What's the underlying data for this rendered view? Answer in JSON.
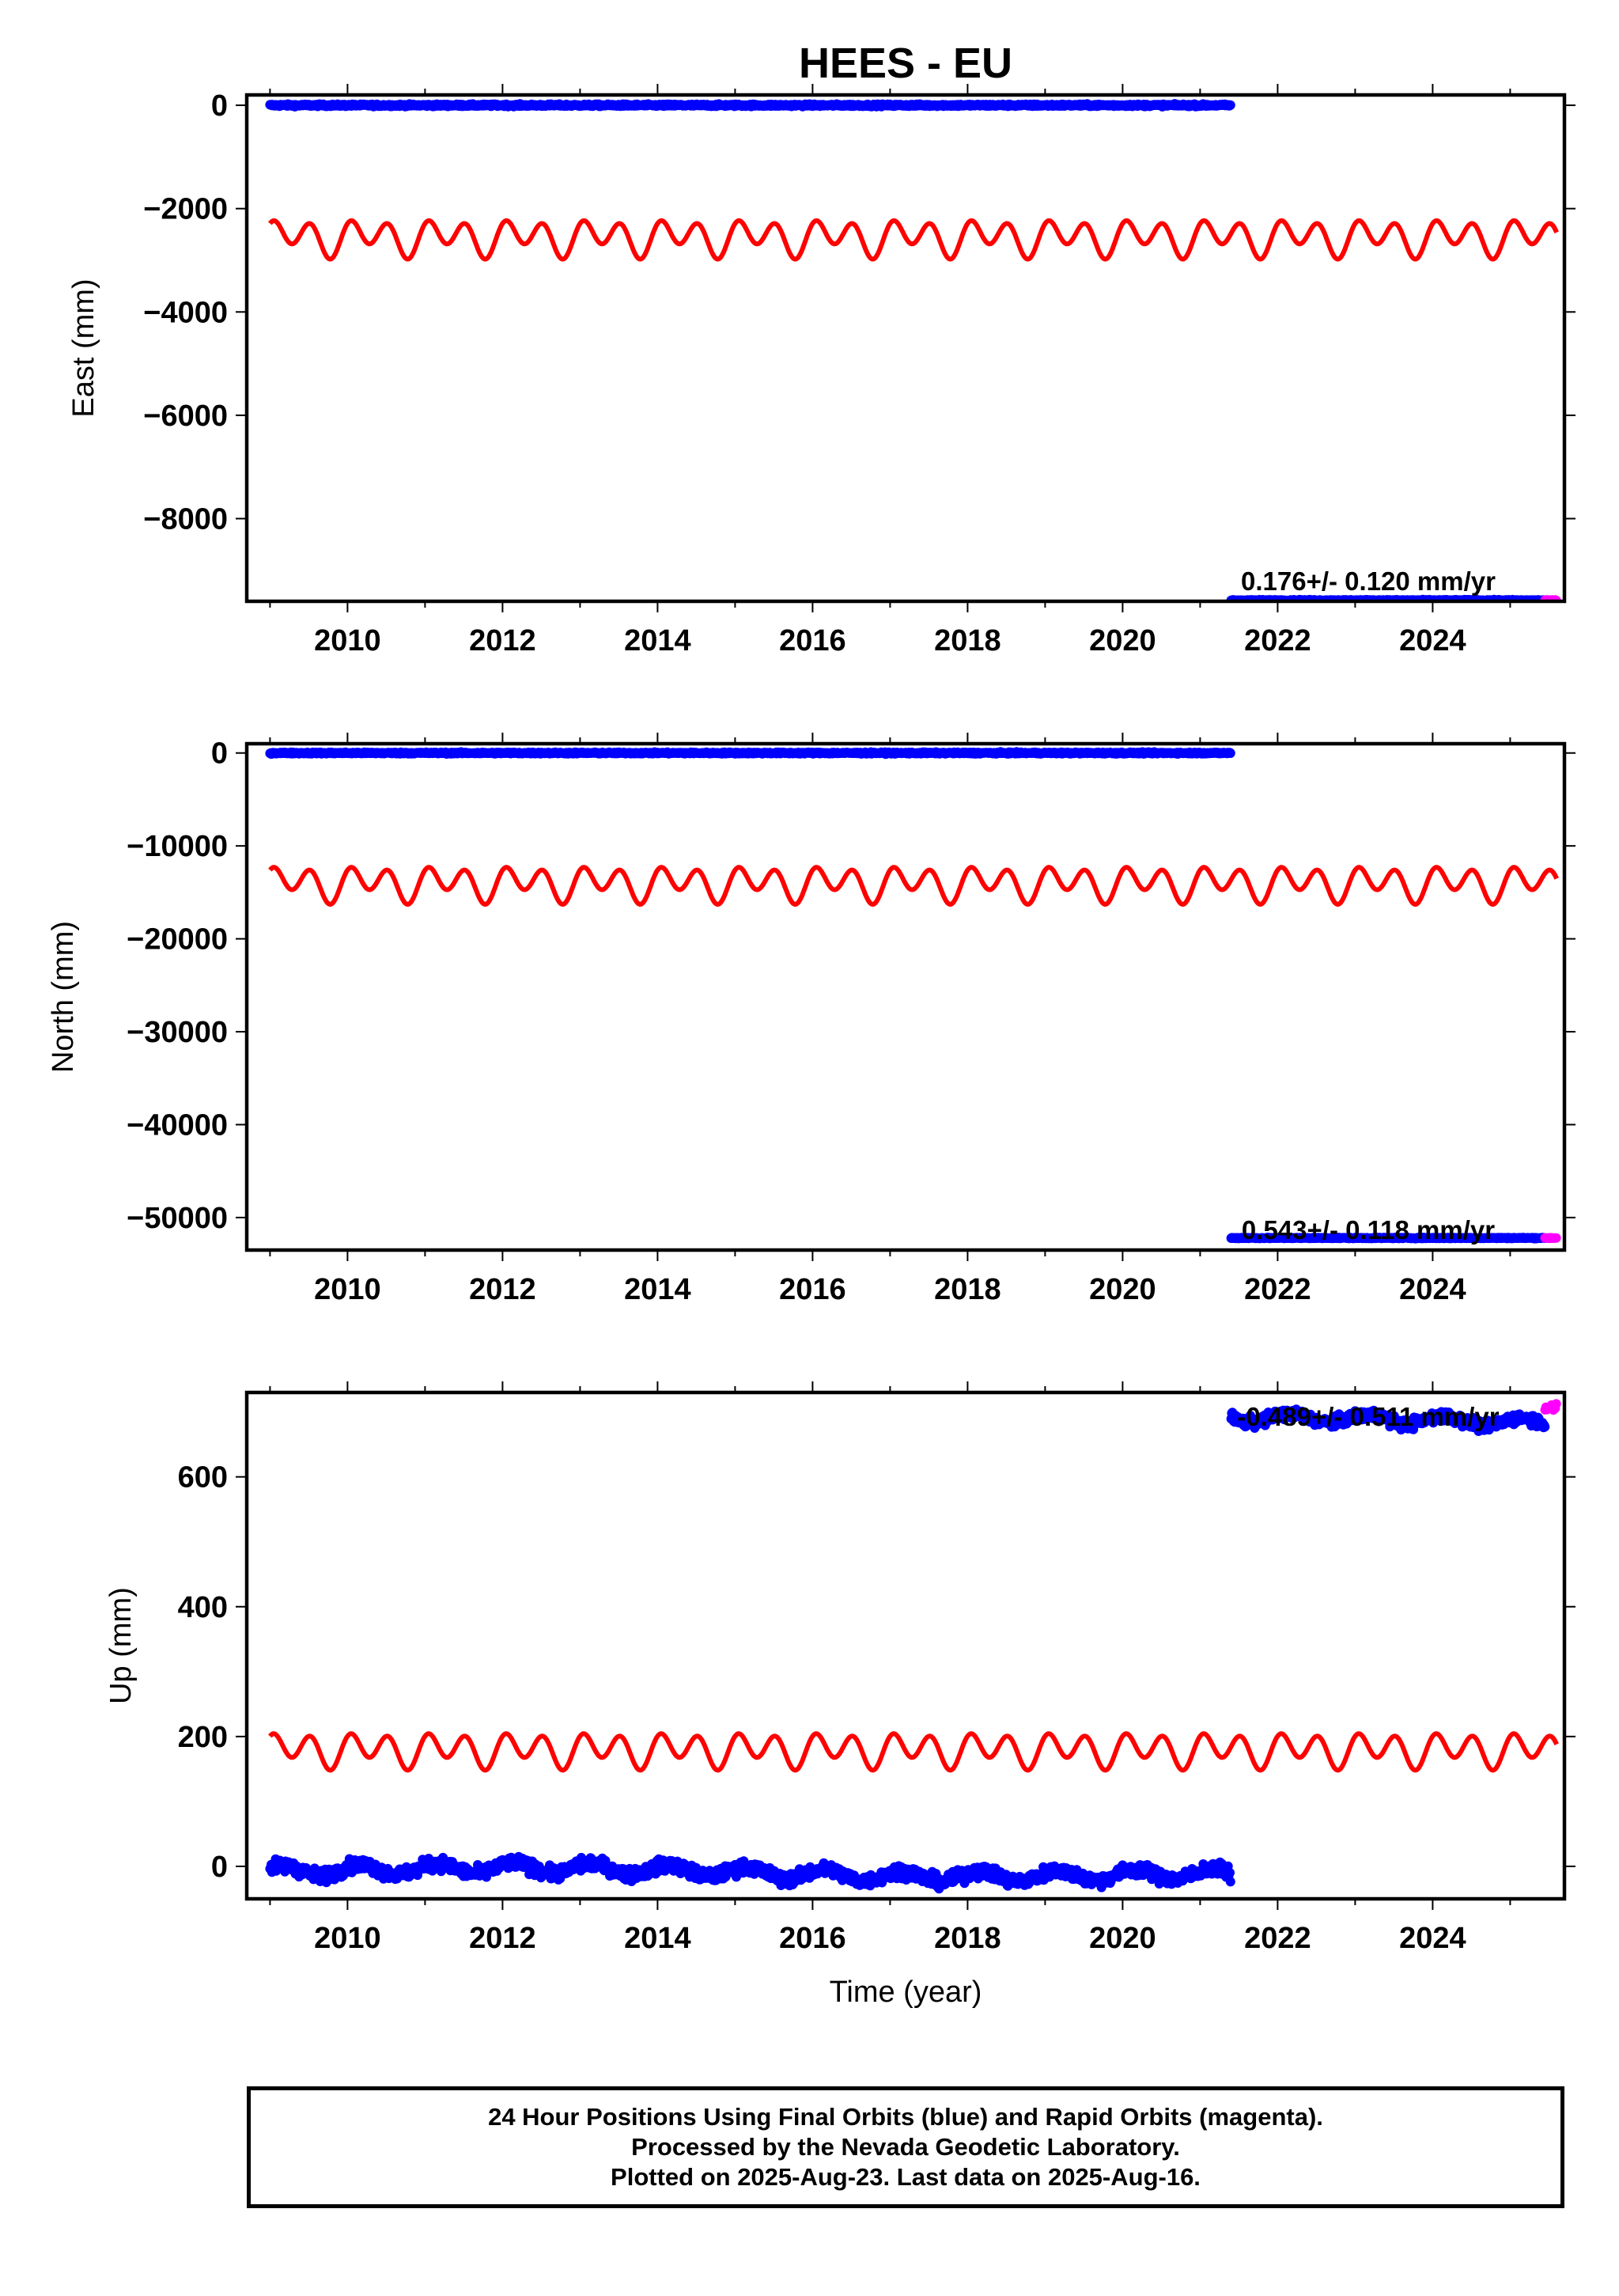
{
  "title": "HEES - EU",
  "x_axis_label": "Time (year)",
  "footer": [
    "24 Hour Positions Using Final Orbits (blue) and Rapid Orbits (magenta).",
    "Processed by the Nevada Geodetic Laboratory.",
    "Plotted on 2025-Aug-23. Last data on 2025-Aug-16."
  ],
  "colors": {
    "final": "#0000ff",
    "rapid": "#ff00ff",
    "model": "#ff0000",
    "frame": "#000000"
  },
  "chart_data": [
    {
      "type": "scatter",
      "ylabel": "East (mm)",
      "xlim": [
        2008.7,
        2025.7
      ],
      "ylim": [
        -9600,
        200
      ],
      "yticks": [
        0,
        -2000,
        -4000,
        -6000,
        -8000
      ],
      "ytick_labels": [
        "0",
        "−2000",
        "−4000",
        "−6000",
        "−8000"
      ],
      "xticks": [
        2010,
        2012,
        2014,
        2016,
        2018,
        2020,
        2022,
        2024
      ],
      "rate_label": "0.176+/- 0.120 mm/yr",
      "segments": [
        {
          "name": "final",
          "x": [
            2009.0,
            2021.4
          ],
          "level": 0,
          "scatter": 15
        },
        {
          "name": "final",
          "x": [
            2021.4,
            2025.45
          ],
          "level": -9580,
          "scatter": 8
        },
        {
          "name": "rapid",
          "x": [
            2025.45,
            2025.6
          ],
          "level": -9580,
          "scatter": 5
        }
      ],
      "model": {
        "x": [
          2009.0,
          2025.6
        ],
        "mean": -2550,
        "annual": 150,
        "semiannual": 280,
        "semiannual_phase": 1.2
      }
    },
    {
      "type": "scatter",
      "ylabel": "North (mm)",
      "xlim": [
        2008.7,
        2025.7
      ],
      "ylim": [
        -53500,
        1000
      ],
      "yticks": [
        0,
        -10000,
        -20000,
        -30000,
        -40000,
        -50000
      ],
      "ytick_labels": [
        "0",
        "−10000",
        "−20000",
        "−30000",
        "−40000",
        "−50000"
      ],
      "xticks": [
        2010,
        2012,
        2014,
        2016,
        2018,
        2020,
        2022,
        2024
      ],
      "rate_label": "0.543+/- 0.118 mm/yr",
      "segments": [
        {
          "name": "final",
          "x": [
            2009.0,
            2021.4
          ],
          "level": 0,
          "scatter": 60
        },
        {
          "name": "final",
          "x": [
            2021.4,
            2025.45
          ],
          "level": -52200,
          "scatter": 40
        },
        {
          "name": "rapid",
          "x": [
            2025.45,
            2025.6
          ],
          "level": -52200,
          "scatter": 30
        }
      ],
      "model": {
        "x": [
          2009.0,
          2025.6
        ],
        "mean": -14000,
        "annual": 800,
        "semiannual": 1500,
        "semiannual_phase": 1.2
      }
    },
    {
      "type": "scatter",
      "ylabel": "Up (mm)",
      "xlim": [
        2008.7,
        2025.7
      ],
      "ylim": [
        -50,
        730
      ],
      "yticks": [
        0,
        200,
        400,
        600
      ],
      "ytick_labels": [
        "0",
        "200",
        "400",
        "600"
      ],
      "xticks": [
        2010,
        2012,
        2014,
        2016,
        2018,
        2020,
        2022,
        2024
      ],
      "rate_label": "-0.489+/- 0.511 mm/yr",
      "segments": [
        {
          "name": "final",
          "x": [
            2009.0,
            2021.4
          ],
          "level": -3,
          "scatter": 7,
          "trend": -1.0,
          "annual": 8
        },
        {
          "name": "final",
          "x": [
            2021.4,
            2025.45
          ],
          "level": 687,
          "scatter": 6,
          "trend": 0,
          "annual": 7
        },
        {
          "name": "rapid",
          "x": [
            2025.45,
            2025.6
          ],
          "level": 707,
          "scatter": 4,
          "trend": 0,
          "annual": 0
        }
      ],
      "model": {
        "x": [
          2009.0,
          2025.6
        ],
        "mean": 180,
        "annual": 10,
        "semiannual": 22,
        "semiannual_phase": 1.2
      }
    }
  ]
}
